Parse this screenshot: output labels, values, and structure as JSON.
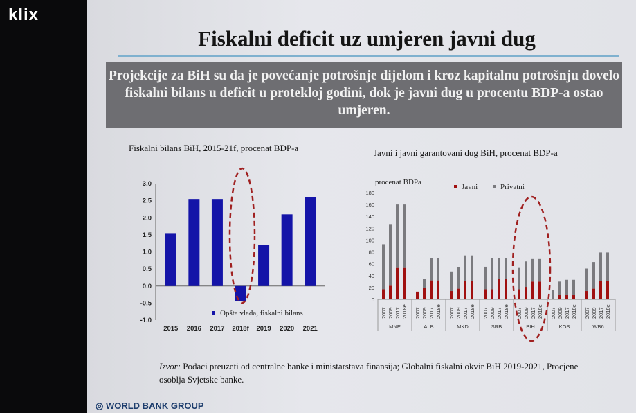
{
  "logo": "klix",
  "slide": {
    "title": "Fiskalni deficit uz umjeren javni dug",
    "banner": "Projekcije za BiH su da je povećanje potrošnje dijelom i kroz kapitalnu potrošnju dovelo fiskalni bilans u deficit u protekloj godini, dok je javni dug u procentu BDP-a ostao umjeren.",
    "source_label": "Izvor:",
    "source_text": " Podaci preuzeti od centralne banke i ministarstava finansija; Globalni fiskalni okvir BiH 2019-2021, Procjene osoblja Svjetske banke.",
    "footer_logo": "WORLD BANK GROUP"
  },
  "colors": {
    "balance": "#1414a8",
    "javni": "#a01010",
    "privatni": "#7a7a7e",
    "highlight": "#a02020"
  },
  "chart_data": [
    {
      "type": "bar",
      "title": "Fiskalni bilans BiH, 2015-21f, procenat BDP-a",
      "categories": [
        "2015",
        "2016",
        "2017",
        "2018f",
        "2019",
        "2020",
        "2021"
      ],
      "series": [
        {
          "name": "Opšta vlada, fiskalni bilans",
          "values": [
            1.55,
            2.55,
            2.55,
            -0.45,
            1.2,
            2.1,
            2.6
          ]
        }
      ],
      "ylim": [
        -1.0,
        3.0
      ],
      "yticks": [
        "3.0",
        "2.5",
        "2.0",
        "1.5",
        "1.0",
        "0.5",
        "0.0",
        "-0.5",
        "-1.0"
      ],
      "legend": "bottom",
      "highlight": "2018f"
    },
    {
      "type": "bar",
      "stacked": true,
      "title": "Javni i javni garantovani dug BiH, procenat BDP-a",
      "ylabel": "procenat BDPa",
      "groups": [
        "MNE",
        "ALB",
        "MKD",
        "SRB",
        "BIH",
        "KOS",
        "WB6"
      ],
      "years": [
        "2007",
        "2009",
        "2017",
        "2018e"
      ],
      "series": [
        {
          "name": "Javni",
          "values": [
            [
              17,
              23,
              53,
              53
            ],
            [
              13,
              19,
              32,
              32
            ],
            [
              14,
              18,
              31,
              31
            ],
            [
              17,
              17,
              35,
              35
            ],
            [
              17,
              21,
              30,
              30
            ],
            [
              0,
              7,
              7,
              7
            ],
            [
              14,
              18,
              31,
              31
            ]
          ]
        },
        {
          "name": "Privatni",
          "values": [
            [
              76,
              104,
              107,
              107
            ],
            [
              0,
              15,
              38,
              38
            ],
            [
              33,
              36,
              43,
              43
            ],
            [
              38,
              52,
              34,
              34
            ],
            [
              36,
              43,
              38,
              38
            ],
            [
              16,
              23,
              26,
              26
            ],
            [
              38,
              45,
              48,
              48
            ]
          ]
        }
      ],
      "ylim": [
        0,
        180
      ],
      "yticks": [
        "180",
        "160",
        "140",
        "120",
        "100",
        "80",
        "60",
        "40",
        "20",
        "0"
      ],
      "legend": "top",
      "highlight": "BIH"
    }
  ]
}
